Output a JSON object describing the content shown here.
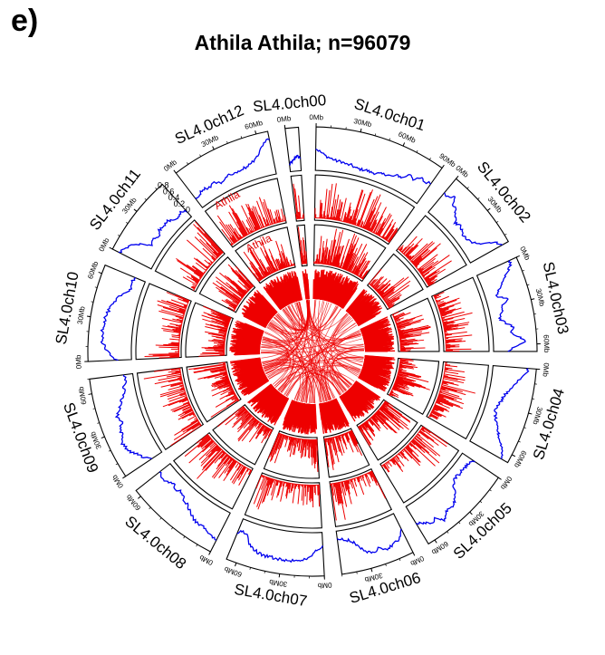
{
  "panel_label": "e)",
  "chart_data": {
    "type": "circos",
    "title": "Athila Athila; n=96079",
    "colors": {
      "density_line": "#0000ee",
      "bars": "#ee0000",
      "links": "#ee0000",
      "frame": "#000000"
    },
    "track_labels": {
      "middle": "Athila",
      "inner": "Athila"
    },
    "outer_axis_ticks": [
      "0.8",
      "0.6",
      "0.4",
      "0.2",
      "0"
    ],
    "chromosomes": [
      {
        "name": "SL4.0ch00",
        "length_mb": 9,
        "ticks": [
          "0Mb"
        ],
        "density": [
          0.1,
          0.15,
          0.2,
          0.3,
          0.3,
          0.25
        ]
      },
      {
        "name": "SL4.0ch01",
        "length_mb": 90,
        "ticks": [
          "0Mb",
          "30Mb",
          "60Mb",
          "90Mb"
        ],
        "density": [
          0.5,
          0.4,
          0.3,
          0.25,
          0.2,
          0.2,
          0.15,
          0.15,
          0.1,
          0.1,
          0.12,
          0.1,
          0.12,
          0.15,
          0.2,
          0.2,
          0.3,
          0.3,
          0.5,
          0.4,
          0.55,
          0.5,
          0.6
        ]
      },
      {
        "name": "SL4.0ch02",
        "length_mb": 55,
        "ticks": [
          "0Mb",
          "30Mb"
        ],
        "density": [
          0.6,
          0.55,
          0.7,
          0.5,
          0.45,
          0.3,
          0.2,
          0.25,
          0.2,
          0.15,
          0.15,
          0.2,
          0.3,
          0.5,
          0.8,
          0.9
        ]
      },
      {
        "name": "SL4.0ch03",
        "length_mb": 65,
        "ticks": [
          "0Mb",
          "30Mb",
          "60Mb"
        ],
        "density": [
          0.9,
          0.85,
          0.7,
          0.5,
          0.4,
          0.3,
          0.2,
          0.5,
          0.3,
          0.25,
          0.2,
          0.15,
          0.3,
          0.5,
          0.4,
          0.6,
          0.8,
          0.5,
          0.3
        ]
      },
      {
        "name": "SL4.0ch04",
        "length_mb": 66,
        "ticks": [
          "0Mb",
          "30Mb",
          "60Mb"
        ],
        "density": [
          0.9,
          0.8,
          0.7,
          0.6,
          0.5,
          0.4,
          0.3,
          0.3,
          0.2,
          0.2,
          0.25,
          0.3,
          0.4,
          0.5,
          0.6,
          0.75,
          0.85,
          0.9
        ]
      },
      {
        "name": "SL4.0ch05",
        "length_mb": 65,
        "ticks": [
          "0Mb",
          "30Mb",
          "60Mb"
        ],
        "density": [
          0.3,
          0.2,
          0.2,
          0.15,
          0.2,
          0.15,
          0.2,
          0.3,
          0.5,
          0.6,
          0.7,
          0.6,
          0.7,
          0.8,
          0.6,
          0.7,
          0.6,
          0.5,
          0.45
        ]
      },
      {
        "name": "SL4.0ch06",
        "length_mb": 50,
        "ticks": [
          "0Mb",
          "30Mb"
        ],
        "density": [
          0.4,
          0.6,
          0.65,
          0.7,
          0.75,
          0.6,
          0.7,
          0.65,
          0.5,
          0.3,
          0.2,
          0.15,
          0.1
        ]
      },
      {
        "name": "SL4.0ch07",
        "length_mb": 67,
        "ticks": [
          "0Mb",
          "30Mb",
          "60Mb"
        ],
        "density": [
          0.3,
          0.35,
          0.5,
          0.6,
          0.65,
          0.7,
          0.7,
          0.72,
          0.7,
          0.7,
          0.68,
          0.7,
          0.65,
          0.6,
          0.5,
          0.3,
          0.2,
          0.3
        ]
      },
      {
        "name": "SL4.0ch08",
        "length_mb": 65,
        "ticks": [
          "0Mb",
          "60Mb"
        ],
        "density": [
          0.75,
          0.7,
          0.65,
          0.6,
          0.6,
          0.55,
          0.45,
          0.35,
          0.3,
          0.2,
          0.25,
          0.2,
          0.3,
          0.3,
          0.25
        ]
      },
      {
        "name": "SL4.0ch09",
        "length_mb": 70,
        "ticks": [
          "0Mb",
          "30Mb",
          "60Mb"
        ],
        "density": [
          0.2,
          0.4,
          0.5,
          0.65,
          0.7,
          0.75,
          0.6,
          0.65,
          0.5,
          0.6,
          0.5,
          0.4,
          0.3,
          0.2,
          0.2,
          0.1,
          0.15
        ]
      },
      {
        "name": "SL4.0ch10",
        "length_mb": 66,
        "ticks": [
          "0Mb",
          "30Mb",
          "60Mb"
        ],
        "density": [
          0.3,
          0.5,
          0.6,
          0.7,
          0.7,
          0.75,
          0.7,
          0.7,
          0.65,
          0.6,
          0.5,
          0.45,
          0.3,
          0.2,
          0.25,
          0.2
        ]
      },
      {
        "name": "SL4.0ch11",
        "length_mb": 55,
        "ticks": [
          "0Mb",
          "30Mb"
        ],
        "density": [
          0.9,
          0.8,
          0.7,
          0.5,
          0.2,
          0.3,
          0.2,
          0.3,
          0.25,
          0.3,
          0.2,
          0.15,
          0.2,
          0.1
        ]
      },
      {
        "name": "SL4.0ch12",
        "length_mb": 68,
        "ticks": [
          "0Mb",
          "30Mb",
          "60Mb"
        ],
        "density": [
          0.2,
          0.25,
          0.3,
          0.25,
          0.3,
          0.2,
          0.25,
          0.3,
          0.25,
          0.3,
          0.3,
          0.35,
          0.4,
          0.6,
          0.8,
          0.9
        ]
      }
    ]
  }
}
